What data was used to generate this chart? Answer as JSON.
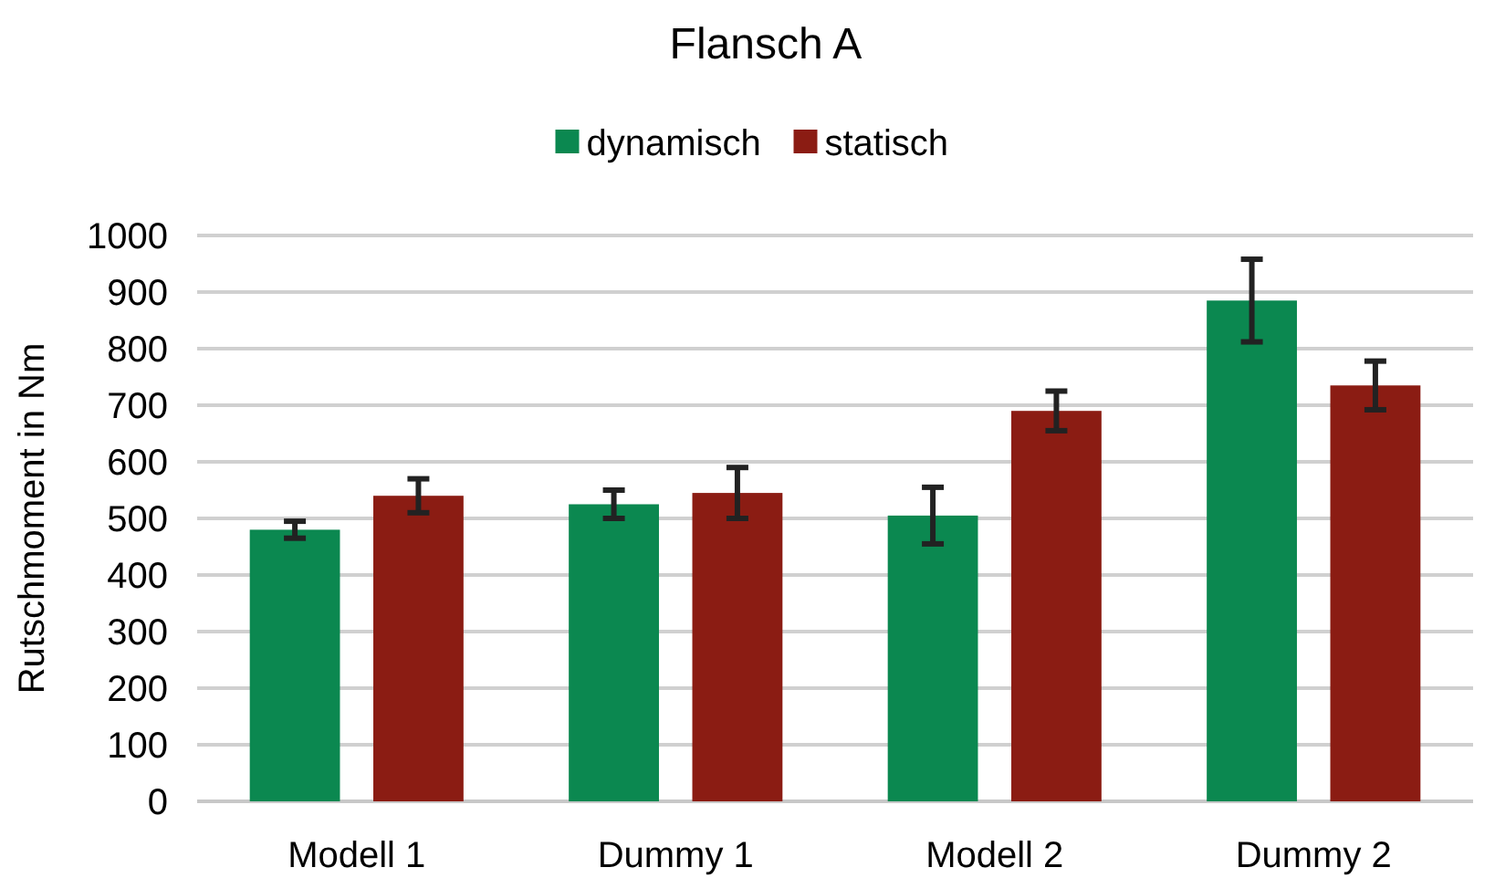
{
  "chart_data": {
    "type": "bar",
    "title": "Flansch A",
    "ylabel": "Rutschmoment in Nm",
    "categories": [
      "Modell 1",
      "Dummy 1",
      "Modell 2",
      "Dummy 2"
    ],
    "series": [
      {
        "name": "dynamisch",
        "color": "#0b8850",
        "values": [
          480,
          525,
          505,
          885
        ],
        "errors": [
          15,
          25,
          50,
          73
        ]
      },
      {
        "name": "statisch",
        "color": "#8b1c13",
        "values": [
          540,
          545,
          690,
          735
        ],
        "errors": [
          30,
          45,
          35,
          43
        ]
      }
    ],
    "ylim": [
      0,
      1000
    ],
    "yticks": [
      0,
      100,
      200,
      300,
      400,
      500,
      600,
      700,
      800,
      900,
      1000
    ],
    "grid": "y",
    "legend": "top"
  }
}
